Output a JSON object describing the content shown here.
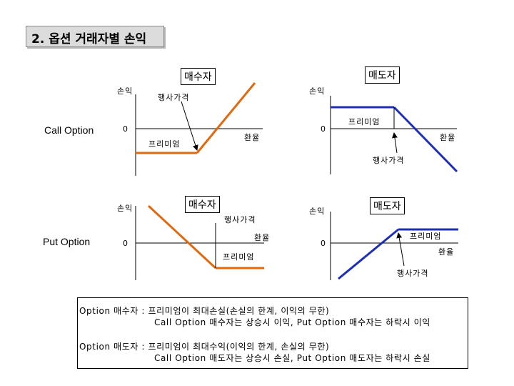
{
  "slide_title": "2. 옵션 거래자별 손익",
  "rows": {
    "call": "Call Option",
    "put": "Put Option"
  },
  "panels": {
    "call_buyer": {
      "role": "매수자",
      "y_label": "손익",
      "zero": "0",
      "strike_label": "행사가격",
      "premium_label": "프리미엄",
      "x_label": "환율",
      "line_color": "#e06a10"
    },
    "call_seller": {
      "role": "매도자",
      "y_label": "손익",
      "zero": "0",
      "strike_label": "행사가격",
      "premium_label": "프리미엄",
      "x_label": "환율",
      "line_color": "#1f2fb5"
    },
    "put_buyer": {
      "role": "매수자",
      "y_label": "손익",
      "zero": "0",
      "strike_label": "행사가격",
      "premium_label": "프리미엄",
      "x_label": "환율",
      "line_color": "#e06a10"
    },
    "put_seller": {
      "role": "매도자",
      "y_label": "손익",
      "zero": "0",
      "strike_label": "행사가격",
      "premium_label": "프리미엄",
      "x_label": "환율",
      "line_color": "#1f2fb5"
    }
  },
  "notes": {
    "buyer_line1": "Option 매수자 : 프리미엄이 최대손실(손실의 한계, 이익의 무한)",
    "buyer_line2": "Call Option 매수자는 상승시 이익, Put Option 매수자는 하락시 이익",
    "seller_line1": "Option 매도자 : 프리미엄이 최대수익(이익의 한계, 손실의 무한)",
    "seller_line2": "Call Option 매도자는 상승시 손실, Put Option 매도자는 하락시 손실"
  }
}
